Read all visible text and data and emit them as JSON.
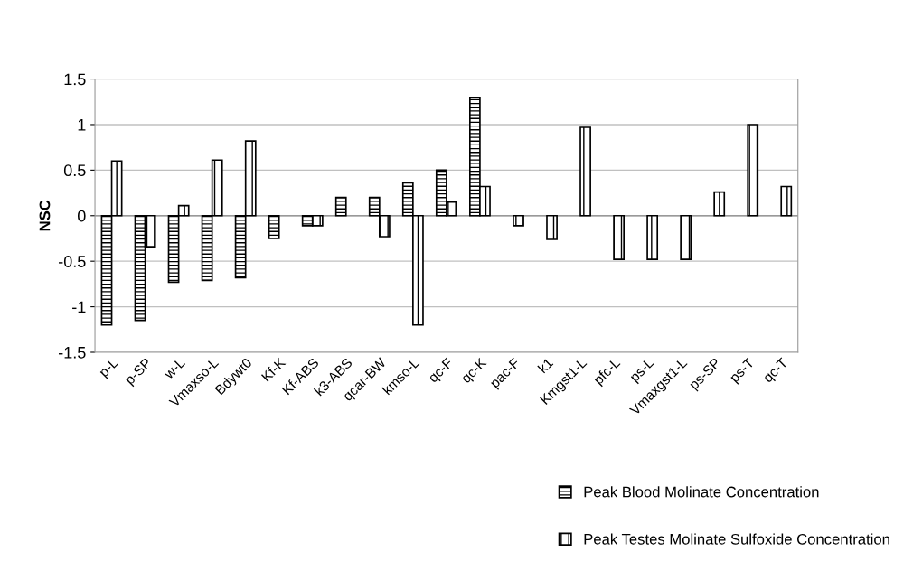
{
  "chart_data": {
    "type": "bar",
    "ylabel": "NSC",
    "categories": [
      "p-L",
      "p-SP",
      "w-L",
      "Vmaxso-L",
      "Bdywt0",
      "Kf-K",
      "Kf-ABS",
      "k3-ABS",
      "qcar-BW",
      "kmso-L",
      "qc-F",
      "qc-K",
      "pac-F",
      "k1",
      "Kmgst1-L",
      "pfc-L",
      "ps-L",
      "Vmaxgst1-L",
      "ps-SP",
      "ps-T",
      "qc-T"
    ],
    "series": [
      {
        "name": "Peak Blood Molinate Concentration",
        "color": "#000000",
        "values": [
          -1.2,
          -1.15,
          -0.73,
          -0.71,
          -0.68,
          -0.25,
          -0.11,
          0.2,
          0.2,
          0.36,
          0.5,
          1.3,
          null,
          null,
          null,
          null,
          null,
          null,
          null,
          null,
          null
        ]
      },
      {
        "name": "Peak Testes Molinate Sulfoxide Concentration",
        "color": "#000000",
        "values": [
          0.6,
          -0.34,
          0.11,
          0.61,
          0.82,
          null,
          -0.11,
          null,
          -0.23,
          -1.2,
          0.15,
          0.32,
          -0.11,
          -0.26,
          0.97,
          -0.48,
          -0.48,
          -0.48,
          0.26,
          1.0,
          0.32
        ]
      }
    ],
    "ylim": [
      -1.5,
      1.5
    ],
    "yticks": [
      -1.5,
      -1,
      -0.5,
      0,
      0.5,
      1,
      1.5
    ],
    "grid": "y",
    "legend": "bottom right"
  }
}
